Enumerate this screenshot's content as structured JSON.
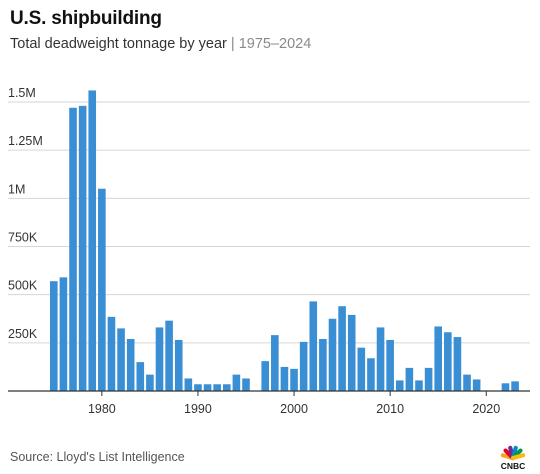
{
  "header": {
    "title": "U.S. shipbuilding",
    "subtitle_main": "Total deadweight tonnage by year",
    "subtitle_separator": "|",
    "subtitle_range": "1975–2024"
  },
  "footer": {
    "source": "Source: Lloyd's List Intelligence",
    "logo_text": "CNBC",
    "logo_colors": [
      "#F5A623",
      "#E4002B",
      "#6E2C91",
      "#0089D0",
      "#009A44",
      "#FDB913"
    ]
  },
  "chart_data": {
    "type": "bar",
    "title": "U.S. shipbuilding",
    "subtitle": "Total deadweight tonnage by year | 1975–2024",
    "xlabel": "",
    "ylabel": "",
    "bar_color": "#3a8fd4",
    "grid": true,
    "ylim": [
      0,
      1500000
    ],
    "yticks": [
      250000,
      500000,
      750000,
      1000000,
      1250000,
      1500000
    ],
    "ytick_labels": [
      "250K",
      "500K",
      "750K",
      "1M",
      "1.25M",
      "1.5M"
    ],
    "xticks": [
      1980,
      1990,
      2000,
      2010,
      2020
    ],
    "xtick_labels": [
      "1980",
      "1990",
      "2000",
      "2010",
      "2020"
    ],
    "x": [
      1975,
      1976,
      1977,
      1978,
      1979,
      1980,
      1981,
      1982,
      1983,
      1984,
      1985,
      1986,
      1987,
      1988,
      1989,
      1990,
      1991,
      1992,
      1993,
      1994,
      1995,
      1996,
      1997,
      1998,
      1999,
      2000,
      2001,
      2002,
      2003,
      2004,
      2005,
      2006,
      2007,
      2008,
      2009,
      2010,
      2011,
      2012,
      2013,
      2014,
      2015,
      2016,
      2017,
      2018,
      2019,
      2020,
      2021,
      2022,
      2023,
      2024
    ],
    "values": [
      570000,
      590000,
      1470000,
      1480000,
      1560000,
      1050000,
      385000,
      325000,
      270000,
      150000,
      85000,
      330000,
      365000,
      265000,
      65000,
      35000,
      35000,
      35000,
      35000,
      85000,
      65000,
      0,
      155000,
      290000,
      125000,
      115000,
      255000,
      465000,
      270000,
      375000,
      440000,
      395000,
      225000,
      170000,
      330000,
      265000,
      55000,
      120000,
      55000,
      120000,
      335000,
      305000,
      280000,
      85000,
      60000,
      0,
      0,
      40000,
      50000,
      0
    ]
  }
}
